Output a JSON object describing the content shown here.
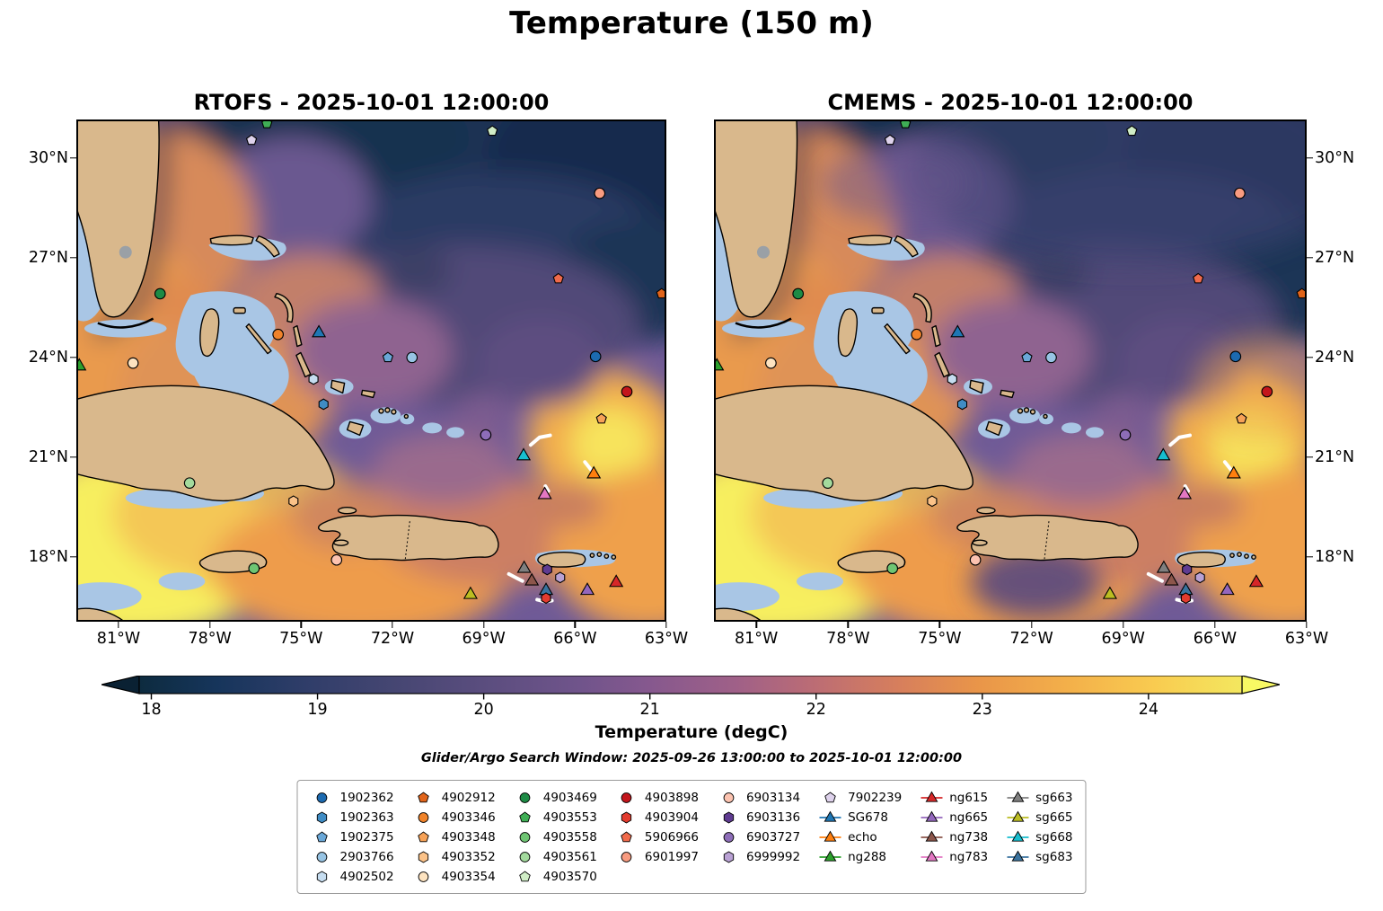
{
  "chart_data": {
    "type": "heatmap",
    "title": "Temperature (150 m)",
    "subtitle": "Glider/Argo Search Window: 2025-09-26 13:00:00 to 2025-10-01 12:00:00",
    "panels": [
      {
        "title": "RTOFS - 2025-10-01 12:00:00"
      },
      {
        "title": "CMEMS - 2025-10-01 12:00:00"
      }
    ],
    "axes": {
      "x": {
        "labels": [
          "81°W",
          "78°W",
          "75°W",
          "72°W",
          "69°W",
          "66°W",
          "63°W"
        ],
        "fractions": [
          0.0715,
          0.2263,
          0.381,
          0.5358,
          0.6905,
          0.8453,
          1.0
        ]
      },
      "y": {
        "labels": [
          "30°N",
          "27°N",
          "24°N",
          "21°N",
          "18°N"
        ],
        "fractions": [
          0.077,
          0.2755,
          0.474,
          0.6725,
          0.871
        ]
      }
    },
    "colorbar": {
      "label": "Temperature (degC)",
      "ticks": {
        "labels": [
          "18",
          "19",
          "20",
          "21",
          "22",
          "23",
          "24"
        ],
        "fractions": [
          0.011,
          0.1617,
          0.3124,
          0.4631,
          0.6138,
          0.7645,
          0.9152
        ]
      },
      "under_color": "#0a2133",
      "over_color": "#f8f964",
      "stops": [
        [
          0,
          "#0d2b3f"
        ],
        [
          0.07,
          "#16355b"
        ],
        [
          0.15,
          "#2f3d69"
        ],
        [
          0.23,
          "#454672"
        ],
        [
          0.31,
          "#5a4d7e"
        ],
        [
          0.4,
          "#70548b"
        ],
        [
          0.46,
          "#85588e"
        ],
        [
          0.54,
          "#9f6088"
        ],
        [
          0.61,
          "#bb6c75"
        ],
        [
          0.69,
          "#d77f5c"
        ],
        [
          0.76,
          "#e99549"
        ],
        [
          0.84,
          "#f3af4a"
        ],
        [
          0.92,
          "#f9cb50"
        ],
        [
          1,
          "#f3e75f"
        ]
      ]
    },
    "legend": {
      "columns": [
        [
          {
            "id": "1902362",
            "shape": "circle",
            "color": "#1c6ab0"
          },
          {
            "id": "1902363",
            "shape": "hexagon",
            "color": "#3f8cc4"
          },
          {
            "id": "1902375",
            "shape": "pentagon",
            "color": "#6aa8d8"
          },
          {
            "id": "2903766",
            "shape": "circle",
            "color": "#97c4e4"
          },
          {
            "id": "4902502",
            "shape": "hexagon",
            "color": "#c6ddf0"
          }
        ],
        [
          {
            "id": "4902912",
            "shape": "pentagon",
            "color": "#e1641a"
          },
          {
            "id": "4903346",
            "shape": "circle",
            "color": "#f0832a"
          },
          {
            "id": "4903348",
            "shape": "pentagon",
            "color": "#f7a257"
          },
          {
            "id": "4903352",
            "shape": "hexagon",
            "color": "#fbc288"
          },
          {
            "id": "4903354",
            "shape": "circle",
            "color": "#fde3c0"
          }
        ],
        [
          {
            "id": "4903469",
            "shape": "circle",
            "color": "#1d8b45"
          },
          {
            "id": "4903553",
            "shape": "pentagon",
            "color": "#3fae55"
          },
          {
            "id": "4903558",
            "shape": "circle",
            "color": "#6ec573"
          },
          {
            "id": "4903561",
            "shape": "circle",
            "color": "#a3da9d"
          },
          {
            "id": "4903570",
            "shape": "pentagon",
            "color": "#d0edc6"
          }
        ],
        [
          {
            "id": "4903898",
            "shape": "circle",
            "color": "#c3161c"
          },
          {
            "id": "4903904",
            "shape": "hexagon",
            "color": "#e23b2e"
          },
          {
            "id": "5906966",
            "shape": "pentagon",
            "color": "#f06a4b"
          },
          {
            "id": "6901997",
            "shape": "circle",
            "color": "#f89b80"
          }
        ],
        [
          {
            "id": "6903134",
            "shape": "circle",
            "color": "#fcc3b0"
          },
          {
            "id": "6903136",
            "shape": "hexagon",
            "color": "#5f3b91"
          },
          {
            "id": "6903727",
            "shape": "circle",
            "color": "#8d6db8"
          },
          {
            "id": "6999992",
            "shape": "hexagon",
            "color": "#b9a1d4"
          }
        ],
        [
          {
            "id": "7902239",
            "shape": "pentagon",
            "color": "#ded2ec"
          },
          {
            "id": "SG678",
            "shape": "triangle",
            "color": "#1f77b4",
            "line": true
          },
          {
            "id": "echo",
            "shape": "triangle",
            "color": "#ff7f0e",
            "line": true
          },
          {
            "id": "ng288",
            "shape": "triangle",
            "color": "#2ca02c",
            "line": true
          }
        ],
        [
          {
            "id": "ng615",
            "shape": "triangle",
            "color": "#d62728",
            "line": true
          },
          {
            "id": "ng665",
            "shape": "triangle",
            "color": "#9467bd",
            "line": true
          },
          {
            "id": "ng738",
            "shape": "triangle",
            "color": "#8c564b",
            "line": true
          },
          {
            "id": "ng783",
            "shape": "triangle",
            "color": "#e377c2",
            "line": true
          }
        ],
        [
          {
            "id": "sg663",
            "shape": "triangle",
            "color": "#7f7f7f",
            "line": true
          },
          {
            "id": "sg665",
            "shape": "triangle",
            "color": "#bcbd22",
            "line": true
          },
          {
            "id": "sg668",
            "shape": "triangle",
            "color": "#17becf",
            "line": true
          },
          {
            "id": "sg683",
            "shape": "triangle",
            "color": "#39739f",
            "line": true
          }
        ]
      ]
    },
    "markers": [
      {
        "id": "4903553",
        "x": 0.323,
        "y": 0.008
      },
      {
        "id": "7902239",
        "x": 0.297,
        "y": 0.041
      },
      {
        "id": "4903570",
        "x": 0.705,
        "y": 0.023
      },
      {
        "id": "6901997",
        "x": 0.887,
        "y": 0.147
      },
      {
        "id": "5906966",
        "x": 0.817,
        "y": 0.317
      },
      {
        "id": "4902912",
        "x": 0.992,
        "y": 0.347
      },
      {
        "id": "4903469",
        "x": 0.142,
        "y": 0.347
      },
      {
        "id": "4903346",
        "x": 0.342,
        "y": 0.428
      },
      {
        "id": "SG678",
        "x": 0.411,
        "y": 0.424
      },
      {
        "id": "ng288",
        "x": 0.005,
        "y": 0.49
      },
      {
        "id": "4903354",
        "x": 0.096,
        "y": 0.485
      },
      {
        "id": "1902375",
        "x": 0.528,
        "y": 0.474
      },
      {
        "id": "2903766",
        "x": 0.569,
        "y": 0.474
      },
      {
        "id": "1902362",
        "x": 0.88,
        "y": 0.472
      },
      {
        "id": "4902502",
        "x": 0.402,
        "y": 0.517
      },
      {
        "id": "4903898",
        "x": 0.933,
        "y": 0.542
      },
      {
        "id": "1902363",
        "x": 0.419,
        "y": 0.567
      },
      {
        "id": "4903348",
        "x": 0.89,
        "y": 0.596
      },
      {
        "id": "6903727",
        "x": 0.694,
        "y": 0.628
      },
      {
        "id": "sg668",
        "x": 0.758,
        "y": 0.669
      },
      {
        "id": "echo",
        "x": 0.877,
        "y": 0.705
      },
      {
        "id": "4903561",
        "x": 0.192,
        "y": 0.724
      },
      {
        "id": "4903352",
        "x": 0.368,
        "y": 0.76
      },
      {
        "id": "ng783",
        "x": 0.794,
        "y": 0.746
      },
      {
        "id": "6903134",
        "x": 0.441,
        "y": 0.877
      },
      {
        "id": "4903558",
        "x": 0.301,
        "y": 0.894
      },
      {
        "id": "sg663",
        "x": 0.759,
        "y": 0.893
      },
      {
        "id": "6903136",
        "x": 0.798,
        "y": 0.896
      },
      {
        "id": "sg665",
        "x": 0.668,
        "y": 0.945
      },
      {
        "id": "ng615",
        "x": 0.915,
        "y": 0.921
      },
      {
        "id": "ng665",
        "x": 0.866,
        "y": 0.937
      },
      {
        "id": "sg683",
        "x": 0.796,
        "y": 0.937
      },
      {
        "id": "4903904",
        "x": 0.796,
        "y": 0.953
      },
      {
        "id": "ng738",
        "x": 0.772,
        "y": 0.918
      },
      {
        "id": "6999992",
        "x": 0.82,
        "y": 0.912
      }
    ],
    "tracks": [
      {
        "points": [
          [
            0.77,
            0.648
          ],
          [
            0.785,
            0.633
          ],
          [
            0.803,
            0.629
          ]
        ]
      },
      {
        "points": [
          [
            0.862,
            0.682
          ],
          [
            0.87,
            0.694
          ],
          [
            0.876,
            0.703
          ]
        ]
      },
      {
        "points": [
          [
            0.733,
            0.905
          ],
          [
            0.746,
            0.913
          ],
          [
            0.756,
            0.919
          ]
        ]
      },
      {
        "points": [
          [
            0.781,
            0.956
          ],
          [
            0.795,
            0.96
          ],
          [
            0.806,
            0.958
          ]
        ]
      },
      {
        "points": [
          [
            0.795,
            0.73
          ],
          [
            0.8,
            0.74
          ]
        ]
      }
    ]
  }
}
